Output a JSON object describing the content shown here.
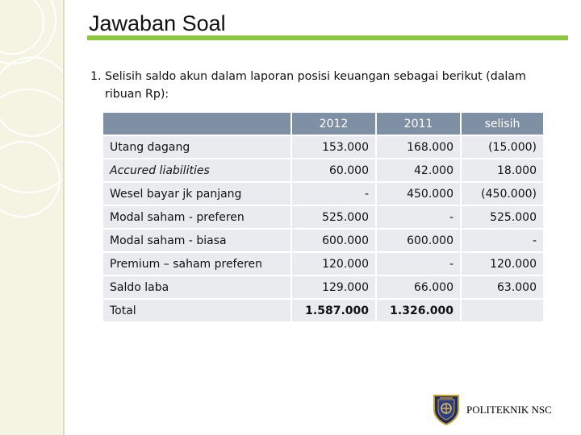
{
  "title": "Jawaban Soal",
  "intro": {
    "number": "1.",
    "text": "Selisih saldo akun dalam laporan posisi keuangan sebagai berikut (dalam ribuan Rp):"
  },
  "table": {
    "headers": [
      "",
      "2012",
      "2011",
      "selisih"
    ],
    "rows": [
      {
        "label": "Utang dagang",
        "v2012": "153.000",
        "v2011": "168.000",
        "selisih": "(15.000)"
      },
      {
        "label": "Accured liabilities",
        "v2012": "60.000",
        "v2011": "42.000",
        "selisih": "18.000"
      },
      {
        "label": "Wesel bayar jk panjang",
        "v2012": "-",
        "v2011": "450.000",
        "selisih": "(450.000)"
      },
      {
        "label": "Modal saham - preferen",
        "v2012": "525.000",
        "v2011": "-",
        "selisih": "525.000"
      },
      {
        "label": "Modal saham - biasa",
        "v2012": "600.000",
        "v2011": "600.000",
        "selisih": "-"
      },
      {
        "label": "Premium – saham preferen",
        "v2012": "120.000",
        "v2011": "-",
        "selisih": "120.000"
      },
      {
        "label": "Saldo laba",
        "v2012": "129.000",
        "v2011": "66.000",
        "selisih": "63.000"
      },
      {
        "label": "Total",
        "v2012": "1.587.000",
        "v2011": "1.326.000",
        "selisih": ""
      }
    ]
  },
  "footer": {
    "institution": "POLITEKNIK NSC",
    "logo_icon": "shield-emblem-icon"
  },
  "colors": {
    "accent_green": "#8dc63f",
    "header_fill": "#7f90a4",
    "row_fill": "#e9ebef",
    "sidebar_fill": "#f3f4e2"
  }
}
